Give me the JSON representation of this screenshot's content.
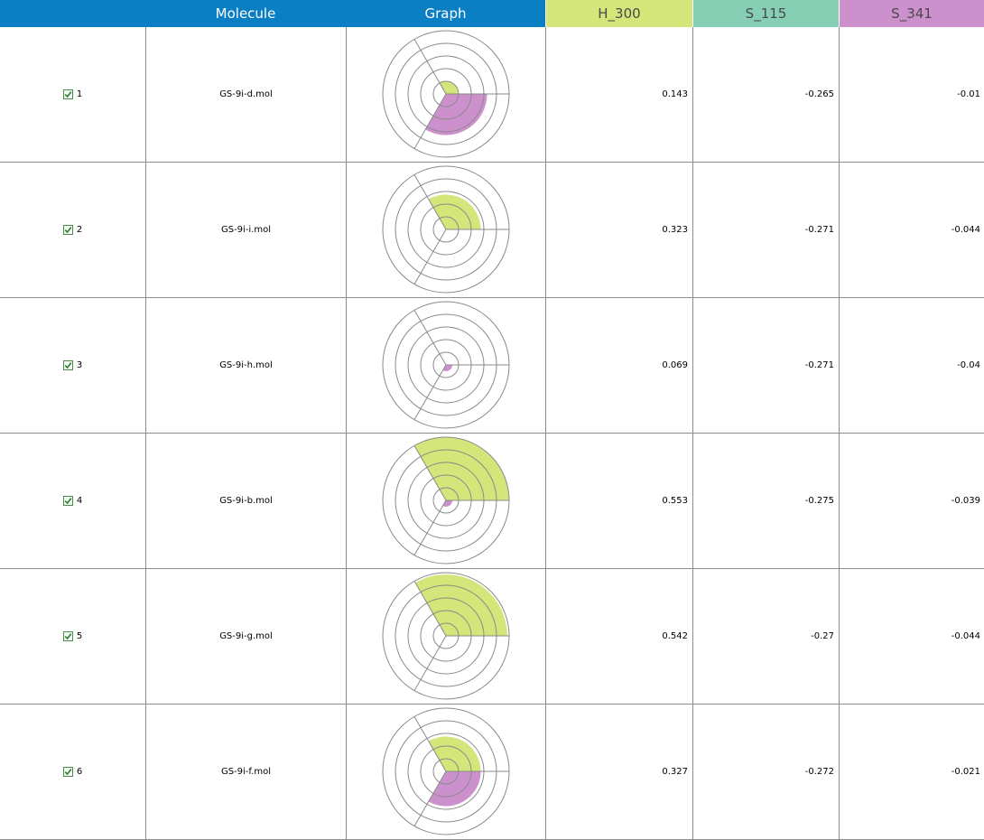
{
  "header": {
    "molecule": "Molecule",
    "graph": "Graph",
    "h300": "H_300",
    "s115": "S_115",
    "s341": "S_341"
  },
  "colors": {
    "header_blue": "#0a7fc4",
    "h300": "#d4e57a",
    "s115": "#86cfb4",
    "s341": "#cc90cc"
  },
  "rows": [
    {
      "index": "1",
      "checked": true,
      "molecule": "GS-9i-d.mol",
      "h300": "0.143",
      "s115": "-0.265",
      "s341": "-0.01",
      "radar": {
        "h300": 0.2,
        "s115": 0,
        "s341": 0.65
      }
    },
    {
      "index": "2",
      "checked": true,
      "molecule": "GS-9i-i.mol",
      "h300": "0.323",
      "s115": "-0.271",
      "s341": "-0.044",
      "radar": {
        "h300": 0.55,
        "s115": 0,
        "s341": 0
      }
    },
    {
      "index": "3",
      "checked": true,
      "molecule": "GS-9i-h.mol",
      "h300": "0.069",
      "s115": "-0.271",
      "s341": "-0.04",
      "radar": {
        "h300": 0,
        "s115": 0,
        "s341": 0.1
      }
    },
    {
      "index": "4",
      "checked": true,
      "molecule": "GS-9i-b.mol",
      "h300": "0.553",
      "s115": "-0.275",
      "s341": "-0.039",
      "radar": {
        "h300": 1.0,
        "s115": 0,
        "s341": 0.1
      }
    },
    {
      "index": "5",
      "checked": true,
      "molecule": "GS-9i-g.mol",
      "h300": "0.542",
      "s115": "-0.27",
      "s341": "-0.044",
      "radar": {
        "h300": 0.97,
        "s115": 0,
        "s341": 0
      }
    },
    {
      "index": "6",
      "checked": true,
      "molecule": "GS-9i-f.mol",
      "h300": "0.327",
      "s115": "-0.272",
      "s341": "-0.021",
      "radar": {
        "h300": 0.55,
        "s115": 0,
        "s341": 0.55
      }
    }
  ]
}
